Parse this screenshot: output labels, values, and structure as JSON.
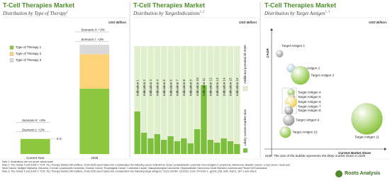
{
  "chart_data": [
    {
      "type": "stacked-bar",
      "title": "T-Cell Therapies Market",
      "subtitle": "Distribution by Type of Therapy",
      "subtitle_note": "1",
      "units": "USD Billion",
      "categories": [
        "Current Year",
        "2035"
      ],
      "series": [
        {
          "name": "Type of Therapy 1",
          "color": "#8dc63f",
          "values": [
            21,
            91
          ]
        },
        {
          "name": "Type of Therapy 2",
          "color": "#fdd37a",
          "values": [
            0,
            48
          ]
        },
        {
          "name": "Type of Therapy 3",
          "color": "#d9d9d9",
          "values": [
            0,
            13
          ]
        }
      ],
      "scenarios": [
        {
          "name": "Scenario I: +2%",
          "values": [
            31,
            157
          ]
        },
        {
          "name": "Scenario II: +3%",
          "values": [
            44,
            170
          ]
        }
      ],
      "annotation": "X.X"
    },
    {
      "type": "stacked-bar",
      "title": "T-Cell Therapies Market",
      "subtitle": "Distribution by TargetIndications",
      "subtitle_note": "1, 2",
      "units": "USD Billion",
      "categories": [
        "Indication 1",
        "Indication 2",
        "Indication 3",
        "Indication 4",
        "Indication 5",
        "Indication 6",
        "Indication 7",
        "Indication 8",
        "Indication 9",
        "Indication 10",
        "Indication 11",
        "Indication 12",
        "Indication 13",
        "Indication 14",
        "Indication 15",
        "Indication 16"
      ],
      "series": [
        {
          "name": "Likely current market size",
          "color": "#7cbf3c",
          "values": [
            60,
            30,
            22,
            28,
            20,
            25,
            18,
            22,
            15,
            35,
            97,
            20,
            16,
            22,
            18,
            14
          ]
        },
        {
          "name": "Additional potential till 2035",
          "color": "#e0efcc",
          "values": [
            92,
            122,
            130,
            124,
            132,
            127,
            134,
            130,
            137,
            117,
            55,
            132,
            136,
            130,
            134,
            138
          ]
        }
      ]
    },
    {
      "type": "bubble",
      "title": "T-Cell Therapies Market",
      "subtitle": "Distribution by Target Antigen",
      "subtitle_note": "1, 3",
      "units": "USD Billion",
      "x_label": "Current Market Share",
      "y_label": "CAGR",
      "note": "Note: The size of the bubble represents the likely market share in 2035",
      "categories": [
        "Target Antigen 1",
        "Target Antigen 2",
        "Target Antigen 3",
        "Target Antigen 4",
        "Target Antigen 5",
        "Target Antigen 6",
        "Target Antigen 7",
        "Target Antigen 8",
        "Target Antigen 9",
        "Target Antigen 10",
        "Target Antigen 11"
      ],
      "x": [
        7,
        17,
        25,
        17,
        18,
        17,
        14,
        15,
        15,
        12,
        83
      ],
      "values": [
        79,
        67,
        61,
        47,
        43,
        39,
        35,
        32,
        24,
        14,
        25
      ],
      "sizes": [
        25,
        36,
        169,
        25,
        16,
        64,
        16,
        36,
        64,
        64,
        484
      ],
      "colors": [
        "#9e9e9e",
        "#a9cbe0",
        "#8dc63f",
        "#8dc63f",
        "#9e9e9e",
        "#f2d04a",
        "#f4f4f4",
        "#8a8a8a",
        "#9a9a9a",
        "#8dc63f",
        "#8dc63f"
      ]
    }
  ],
  "notes": [
    "Note 1: Illustrations are not as per actual scale",
    "Note 2: The Global T-cell (CAR-T, TCR, TIL) Therapy Market (4th Edition), 2018-2035 report takes into consideration the following cancer indications: Acute Lymphoblastic Leukemia, Non-Hodgkin's Lymphoma, Melanoma, Bladder Cancer, Lung Cancer, Head and",
    "Neck Cancer, Multiple Myeloma, Sarcoma, Chronic Lymphocytic Leukemia, Ovarian Cancer, Esophageal Cancer, Colorectal Cancer, Nasopharyngeal Carcinoma, Hepatocellular Carcinoma, Acute Myeloid Leukemia and Renal Cell Carcinoma",
    "Note 3: The Global T-cell (CAR-T, TCR, TIL) Therapy Market (4th Edition), 2018-2035 report takes into consideration the following target antigens: CD19, BCMA, CD19/22, ESO, NY-ESO-1, gp100, p53, EBV, MUC1, WT-1 and others"
  ],
  "logo": "Roots Analysis"
}
